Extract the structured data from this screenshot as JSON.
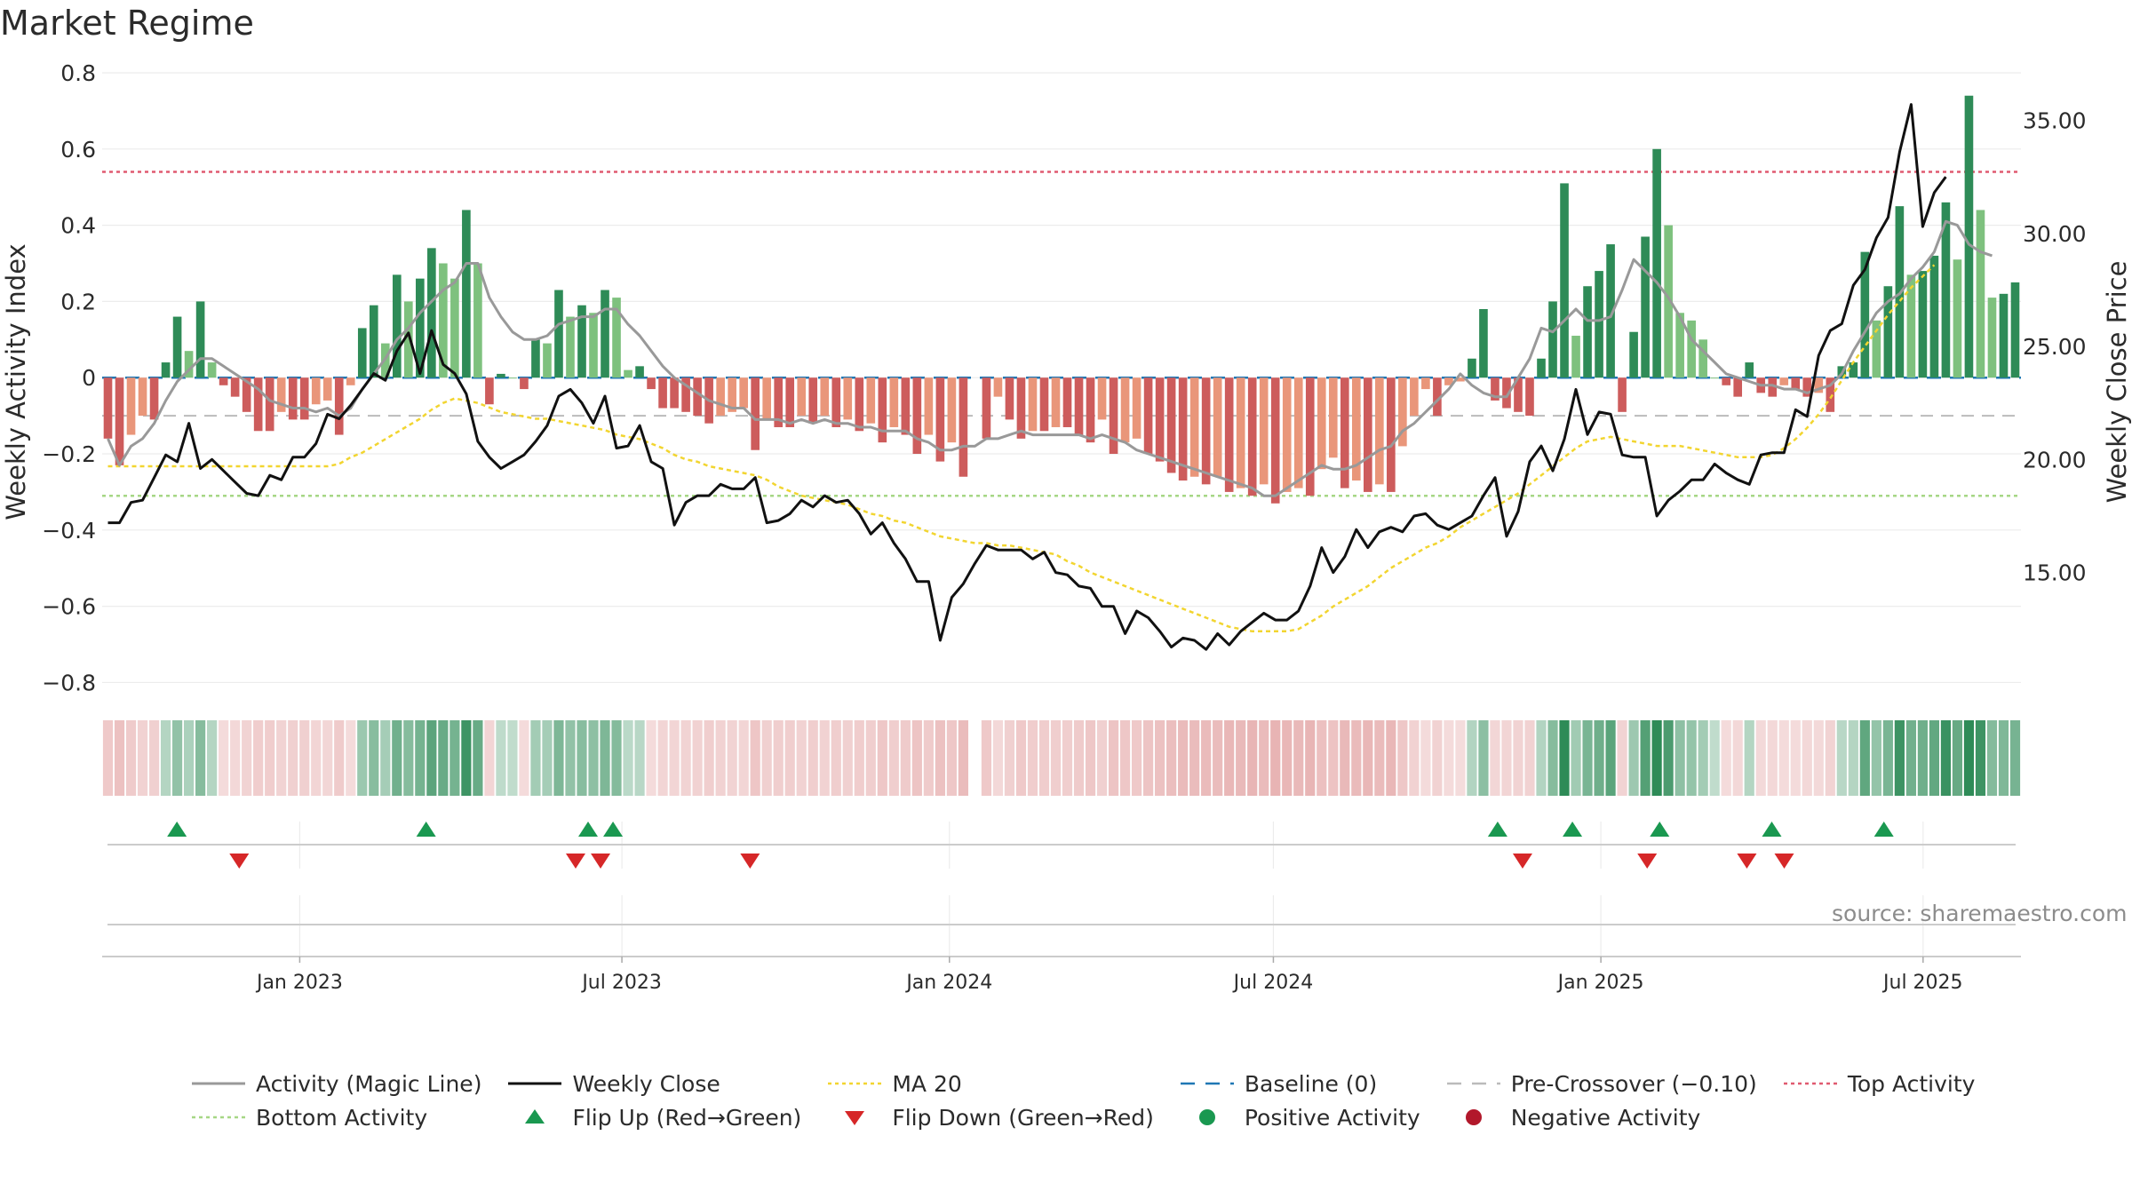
{
  "chart_data": {
    "type": "bar",
    "title": "Market Regime",
    "source_note": "source: sharemaestro.com",
    "x_range": [
      "2022-09-12",
      "2025-08-25"
    ],
    "x_ticks": [
      {
        "date": "2023-01-01",
        "label": "Jan 2023"
      },
      {
        "date": "2023-07-01",
        "label": "Jul 2023"
      },
      {
        "date": "2024-01-01",
        "label": "Jan 2024"
      },
      {
        "date": "2024-07-01",
        "label": "Jul 2024"
      },
      {
        "date": "2025-01-01",
        "label": "Jan 2025"
      },
      {
        "date": "2025-07-01",
        "label": "Jul 2025"
      }
    ],
    "y_left": {
      "label": "Weekly Activity Index",
      "range": [
        -0.82,
        0.8
      ],
      "ticks": [
        0.8,
        0.6,
        0.4,
        0.2,
        0,
        -0.2,
        -0.4,
        -0.6,
        -0.8
      ],
      "tick_labels": [
        "0.8",
        "0.6",
        "0.4",
        "0.2",
        "0",
        "−0.2",
        "−0.4",
        "−0.6",
        "−0.8"
      ]
    },
    "y_right": {
      "label": "Weekly Close Price",
      "range": [
        9.8,
        37.1
      ],
      "ticks": [
        35,
        30,
        25,
        20,
        15
      ],
      "tick_labels": [
        "35.00",
        "30.00",
        "25.00",
        "20.00",
        "15.00"
      ]
    },
    "reference_lines": {
      "top_activity": 0.54,
      "bottom_activity": -0.31,
      "pre_crossover": -0.1,
      "baseline": 0
    },
    "colors": {
      "pos_strong": "#2e8b57",
      "pos_light": "#7ec17e",
      "neg_strong": "#cd5c5c",
      "neg_light": "#e9967a",
      "magic_line": "#999999",
      "close": "#111111",
      "ma20": "#f2d530",
      "baseline": "#1f77b4",
      "pre_crossover": "#bbbbbb",
      "top_activity": "#e05a70",
      "bottom_activity": "#a6d785",
      "flip_up": "#1a9850",
      "flip_down": "#d62728",
      "positive_dot": "#1a9850",
      "negative_dot": "#b2182b"
    },
    "activity_index": [
      -0.16,
      -0.23,
      -0.15,
      -0.1,
      -0.11,
      0.04,
      0.16,
      0.07,
      0.2,
      0.04,
      -0.02,
      -0.05,
      -0.09,
      -0.14,
      -0.14,
      -0.09,
      -0.11,
      -0.11,
      -0.07,
      -0.06,
      -0.15,
      -0.02,
      0.13,
      0.19,
      0.09,
      0.27,
      0.2,
      0.26,
      0.34,
      0.3,
      0.26,
      0.44,
      0.3,
      -0.07,
      0.01,
      0.0,
      -0.03,
      0.1,
      0.09,
      0.23,
      0.16,
      0.19,
      0.17,
      0.23,
      0.21,
      0.02,
      0.03,
      -0.03,
      -0.08,
      -0.08,
      -0.09,
      -0.1,
      -0.12,
      -0.1,
      -0.09,
      -0.08,
      -0.19,
      -0.11,
      -0.13,
      -0.13,
      -0.1,
      -0.12,
      -0.1,
      -0.13,
      -0.11,
      -0.14,
      -0.12,
      -0.17,
      -0.13,
      -0.15,
      -0.2,
      -0.15,
      -0.22,
      -0.17,
      -0.26,
      null,
      -0.16,
      -0.05,
      -0.11,
      -0.16,
      -0.14,
      -0.14,
      -0.13,
      -0.13,
      -0.15,
      -0.17,
      -0.11,
      -0.2,
      -0.17,
      -0.16,
      -0.2,
      -0.22,
      -0.25,
      -0.27,
      -0.26,
      -0.28,
      -0.26,
      -0.3,
      -0.29,
      -0.31,
      -0.28,
      -0.33,
      -0.3,
      -0.29,
      -0.31,
      -0.24,
      -0.21,
      -0.29,
      -0.27,
      -0.3,
      -0.28,
      -0.3,
      -0.18,
      -0.1,
      -0.03,
      -0.1,
      -0.02,
      -0.01,
      0.05,
      0.18,
      -0.06,
      -0.08,
      -0.09,
      -0.1,
      0.05,
      0.2,
      0.51,
      0.11,
      0.24,
      0.28,
      0.35,
      -0.09,
      0.12,
      0.37,
      0.6,
      0.4,
      0.17,
      0.15,
      0.1,
      0.0,
      -0.02,
      -0.05,
      0.04,
      -0.04,
      -0.05,
      -0.02,
      -0.03,
      -0.05,
      -0.04,
      -0.09,
      0.03,
      0.04,
      0.33,
      0.15,
      0.24,
      0.45,
      0.27,
      0.28,
      0.32,
      0.46,
      0.31,
      0.74,
      0.44,
      0.21,
      0.22,
      0.25
    ],
    "weekly_close": [
      17.2,
      17.2,
      18.1,
      18.2,
      19.2,
      20.2,
      19.9,
      21.6,
      19.6,
      20.0,
      19.5,
      19.0,
      18.5,
      18.4,
      19.3,
      19.1,
      20.1,
      20.1,
      20.7,
      22.0,
      21.8,
      22.4,
      23.1,
      23.8,
      23.5,
      24.8,
      25.6,
      23.8,
      25.7,
      24.2,
      23.8,
      22.9,
      20.8,
      20.1,
      19.6,
      19.9,
      20.2,
      20.8,
      21.5,
      22.8,
      23.1,
      22.5,
      21.6,
      22.8,
      20.5,
      20.6,
      21.5,
      19.9,
      19.6,
      17.1,
      18.1,
      18.4,
      18.4,
      18.9,
      18.7,
      18.7,
      19.2,
      17.2,
      17.3,
      17.6,
      18.2,
      17.9,
      18.4,
      18.1,
      18.2,
      17.6,
      16.7,
      17.2,
      16.3,
      15.6,
      14.6,
      14.6,
      12.0,
      13.9,
      14.5,
      15.4,
      16.2,
      16.0,
      16.0,
      16.0,
      15.6,
      15.9,
      15.0,
      14.9,
      14.4,
      14.3,
      13.5,
      13.5,
      12.3,
      13.3,
      13.0,
      12.4,
      11.7,
      12.1,
      12.0,
      11.6,
      12.3,
      11.8,
      12.4,
      12.8,
      13.2,
      12.9,
      12.9,
      13.3,
      14.4,
      16.1,
      15.0,
      15.7,
      16.9,
      16.1,
      16.8,
      17.0,
      16.8,
      17.5,
      17.6,
      17.1,
      16.9,
      17.2,
      17.5,
      18.4,
      19.2,
      16.6,
      17.7,
      19.9,
      20.6,
      19.5,
      20.9,
      23.1,
      21.1,
      22.1,
      22.0,
      20.2,
      20.1,
      20.1,
      17.5,
      18.2,
      18.6,
      19.1,
      19.1,
      19.8,
      19.4,
      19.1,
      18.9,
      20.2,
      20.3,
      20.3,
      22.2,
      21.9,
      24.6,
      25.7,
      26.0,
      27.7,
      28.4,
      29.8,
      30.7,
      33.6,
      35.7,
      30.3,
      31.8,
      32.5
    ],
    "ma20": [
      19.7,
      19.7,
      19.7,
      19.7,
      19.7,
      19.7,
      19.7,
      19.7,
      19.7,
      19.7,
      19.7,
      19.7,
      19.7,
      19.7,
      19.7,
      19.7,
      19.7,
      19.7,
      19.7,
      19.7,
      19.8,
      20.1,
      20.3,
      20.6,
      20.9,
      21.2,
      21.5,
      21.8,
      22.2,
      22.5,
      22.7,
      22.6,
      22.5,
      22.3,
      22.1,
      22.0,
      21.9,
      21.8,
      21.8,
      21.7,
      21.6,
      21.5,
      21.4,
      21.3,
      21.1,
      21.0,
      20.9,
      20.7,
      20.5,
      20.2,
      20.0,
      19.9,
      19.7,
      19.6,
      19.5,
      19.4,
      19.3,
      19.1,
      18.8,
      18.6,
      18.4,
      18.3,
      18.2,
      18.1,
      18.0,
      17.8,
      17.6,
      17.5,
      17.3,
      17.2,
      17.0,
      16.8,
      16.6,
      16.5,
      16.4,
      16.3,
      16.3,
      16.2,
      16.2,
      16.1,
      16.0,
      15.9,
      15.8,
      15.5,
      15.3,
      15.0,
      14.8,
      14.6,
      14.4,
      14.2,
      14.0,
      13.8,
      13.6,
      13.4,
      13.2,
      13.0,
      12.8,
      12.6,
      12.5,
      12.4,
      12.4,
      12.4,
      12.4,
      12.5,
      12.8,
      13.1,
      13.5,
      13.8,
      14.1,
      14.4,
      14.8,
      15.2,
      15.5,
      15.8,
      16.1,
      16.3,
      16.6,
      17.0,
      17.3,
      17.6,
      17.9,
      18.2,
      18.5,
      18.9,
      19.3,
      19.7,
      20.1,
      20.5,
      20.8,
      20.9,
      21.0,
      20.9,
      20.8,
      20.7,
      20.6,
      20.6,
      20.6,
      20.5,
      20.4,
      20.3,
      20.2,
      20.1,
      20.1,
      20.1,
      20.2,
      20.5,
      20.9,
      21.4,
      22.0,
      22.7,
      23.5,
      24.3,
      25.0,
      25.7,
      26.4,
      27.0,
      27.6,
      28.1,
      28.6
    ],
    "magic_line": [
      -0.16,
      -0.23,
      -0.18,
      -0.16,
      -0.12,
      -0.06,
      -0.01,
      0.02,
      0.05,
      0.05,
      0.03,
      0.01,
      -0.01,
      -0.03,
      -0.06,
      -0.07,
      -0.08,
      -0.08,
      -0.09,
      -0.08,
      -0.1,
      -0.08,
      -0.03,
      0.01,
      0.05,
      0.1,
      0.13,
      0.17,
      0.2,
      0.23,
      0.25,
      0.3,
      0.3,
      0.21,
      0.16,
      0.12,
      0.1,
      0.1,
      0.11,
      0.14,
      0.15,
      0.16,
      0.16,
      0.18,
      0.18,
      0.14,
      0.11,
      0.07,
      0.03,
      0.0,
      -0.02,
      -0.04,
      -0.06,
      -0.07,
      -0.08,
      -0.08,
      -0.11,
      -0.11,
      -0.11,
      -0.12,
      -0.11,
      -0.12,
      -0.11,
      -0.12,
      -0.12,
      -0.13,
      -0.13,
      -0.14,
      -0.14,
      -0.14,
      -0.16,
      -0.17,
      -0.19,
      -0.19,
      -0.18,
      -0.18,
      -0.16,
      -0.16,
      -0.15,
      -0.14,
      -0.15,
      -0.15,
      -0.15,
      -0.15,
      -0.15,
      -0.16,
      -0.15,
      -0.16,
      -0.17,
      -0.19,
      -0.2,
      -0.21,
      -0.22,
      -0.23,
      -0.24,
      -0.25,
      -0.26,
      -0.27,
      -0.28,
      -0.29,
      -0.31,
      -0.31,
      -0.29,
      -0.27,
      -0.25,
      -0.23,
      -0.24,
      -0.24,
      -0.23,
      -0.21,
      -0.19,
      -0.18,
      -0.14,
      -0.12,
      -0.09,
      -0.06,
      -0.03,
      0.01,
      -0.02,
      -0.04,
      -0.05,
      -0.05,
      0.0,
      0.05,
      0.13,
      0.12,
      0.15,
      0.18,
      0.15,
      0.15,
      0.16,
      0.23,
      0.31,
      0.28,
      0.25,
      0.21,
      0.16,
      0.1,
      0.07,
      0.04,
      0.01,
      0.0,
      -0.01,
      -0.02,
      -0.02,
      -0.03,
      -0.03,
      -0.04,
      -0.03,
      -0.02,
      0.01,
      0.07,
      0.12,
      0.17,
      0.2,
      0.22,
      0.26,
      0.29,
      0.33,
      0.41,
      0.4,
      0.35,
      0.33,
      0.32
    ],
    "flip_up_dates": [
      "2022-10-24",
      "2023-03-13",
      "2023-06-12",
      "2023-06-26",
      "2024-11-04",
      "2024-12-16",
      "2025-02-03",
      "2025-04-07",
      "2025-06-09"
    ],
    "flip_down_dates": [
      "2022-11-28",
      "2023-06-05",
      "2023-06-19",
      "2023-09-11",
      "2024-11-18",
      "2025-01-27",
      "2025-03-24",
      "2025-04-14"
    ]
  },
  "legend": [
    {
      "label": "Activity (Magic Line)",
      "icon": "solid-line",
      "color": "#999999"
    },
    {
      "label": "Weekly Close",
      "icon": "solid-line",
      "color": "#111111"
    },
    {
      "label": "MA 20",
      "icon": "dotted-line",
      "color": "#f2d530"
    },
    {
      "label": "Baseline (0)",
      "icon": "dashed-line",
      "color": "#1f77b4"
    },
    {
      "label": "Pre-Crossover (−0.10)",
      "icon": "dashed-line",
      "color": "#bbbbbb"
    },
    {
      "label": "Top Activity",
      "icon": "dotted-line",
      "color": "#e05a70"
    },
    {
      "label": "Bottom Activity",
      "icon": "dotted-line",
      "color": "#a6d785"
    },
    {
      "label": "Flip Up (Red→Green)",
      "icon": "triangle-up",
      "color": "#1a9850"
    },
    {
      "label": "Flip Down (Green→Red)",
      "icon": "triangle-down",
      "color": "#d62728"
    },
    {
      "label": "Positive Activity",
      "icon": "dot",
      "color": "#1a9850"
    },
    {
      "label": "Negative Activity",
      "icon": "dot",
      "color": "#b2182b"
    }
  ]
}
